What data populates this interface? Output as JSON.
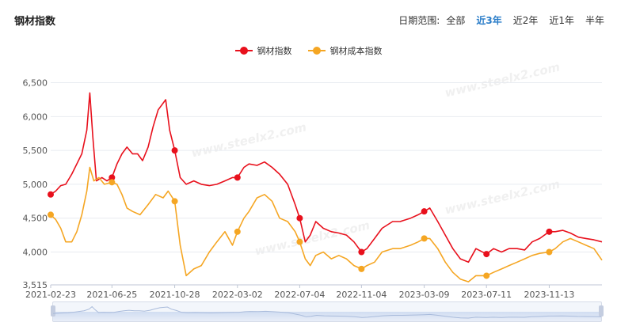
{
  "header": {
    "title": "钢材指数"
  },
  "date_range": {
    "label": "日期范围:",
    "options": [
      "全部",
      "近3年",
      "近2年",
      "近1年",
      "半年"
    ],
    "selected": "近3年"
  },
  "watermark": "www.steelx2.com",
  "colors": {
    "steel_index": "#e8101c",
    "cost_index": "#f5a623",
    "accent": "#2c7ec9"
  },
  "chart_data": {
    "type": "line",
    "title": "",
    "xlabel": "",
    "ylabel": "",
    "x_ticks": [
      "2021-02-23",
      "2021-06-25",
      "2021-10-28",
      "2022-03-02",
      "2022-07-04",
      "2022-11-04",
      "2023-03-09",
      "2023-07-11",
      "2023-11-13"
    ],
    "y_ticks": [
      "3,515",
      "4,000",
      "4,500",
      "5,000",
      "5,500",
      "6,000",
      "6,500"
    ],
    "ylim": [
      3515,
      6600
    ],
    "xlim": [
      "2021-02-23",
      "2024-02-26"
    ],
    "grid": "horizontal",
    "legend_position": "top-center",
    "series": [
      {
        "name": "钢材指数",
        "color": "#e8101c",
        "points": [
          [
            "2021-02-23",
            4850
          ],
          [
            "2021-03-05",
            4900
          ],
          [
            "2021-03-15",
            4980
          ],
          [
            "2021-03-25",
            5000
          ],
          [
            "2021-04-06",
            5150
          ],
          [
            "2021-04-16",
            5300
          ],
          [
            "2021-04-26",
            5450
          ],
          [
            "2021-05-06",
            5800
          ],
          [
            "2021-05-12",
            6350
          ],
          [
            "2021-05-18",
            5700
          ],
          [
            "2021-05-25",
            5050
          ],
          [
            "2021-06-05",
            5100
          ],
          [
            "2021-06-15",
            5050
          ],
          [
            "2021-06-25",
            5100
          ],
          [
            "2021-07-05",
            5300
          ],
          [
            "2021-07-15",
            5450
          ],
          [
            "2021-07-25",
            5550
          ],
          [
            "2021-08-05",
            5450
          ],
          [
            "2021-08-15",
            5450
          ],
          [
            "2021-08-25",
            5350
          ],
          [
            "2021-09-05",
            5550
          ],
          [
            "2021-09-15",
            5850
          ],
          [
            "2021-09-25",
            6100
          ],
          [
            "2021-10-10",
            6250
          ],
          [
            "2021-10-18",
            5800
          ],
          [
            "2021-10-28",
            5500
          ],
          [
            "2021-11-08",
            5100
          ],
          [
            "2021-11-20",
            5000
          ],
          [
            "2021-12-05",
            5050
          ],
          [
            "2021-12-20",
            5000
          ],
          [
            "2022-01-05",
            4980
          ],
          [
            "2022-01-20",
            5000
          ],
          [
            "2022-02-05",
            5050
          ],
          [
            "2022-02-20",
            5100
          ],
          [
            "2022-03-02",
            5100
          ],
          [
            "2022-03-15",
            5250
          ],
          [
            "2022-03-25",
            5300
          ],
          [
            "2022-04-10",
            5280
          ],
          [
            "2022-04-25",
            5330
          ],
          [
            "2022-05-10",
            5250
          ],
          [
            "2022-05-25",
            5150
          ],
          [
            "2022-06-10",
            5000
          ],
          [
            "2022-06-25",
            4700
          ],
          [
            "2022-07-04",
            4500
          ],
          [
            "2022-07-15",
            4150
          ],
          [
            "2022-07-25",
            4250
          ],
          [
            "2022-08-05",
            4450
          ],
          [
            "2022-08-20",
            4350
          ],
          [
            "2022-09-05",
            4300
          ],
          [
            "2022-09-20",
            4280
          ],
          [
            "2022-10-05",
            4250
          ],
          [
            "2022-10-20",
            4150
          ],
          [
            "2022-11-04",
            4000
          ],
          [
            "2022-11-15",
            4050
          ],
          [
            "2022-11-30",
            4200
          ],
          [
            "2022-12-15",
            4350
          ],
          [
            "2023-01-05",
            4450
          ],
          [
            "2023-01-20",
            4450
          ],
          [
            "2023-02-10",
            4500
          ],
          [
            "2023-02-25",
            4550
          ],
          [
            "2023-03-09",
            4600
          ],
          [
            "2023-03-20",
            4650
          ],
          [
            "2023-04-05",
            4450
          ],
          [
            "2023-04-20",
            4250
          ],
          [
            "2023-05-05",
            4050
          ],
          [
            "2023-05-20",
            3900
          ],
          [
            "2023-06-05",
            3850
          ],
          [
            "2023-06-20",
            4050
          ],
          [
            "2023-07-11",
            3970
          ],
          [
            "2023-07-25",
            4050
          ],
          [
            "2023-08-10",
            4000
          ],
          [
            "2023-08-25",
            4050
          ],
          [
            "2023-09-10",
            4050
          ],
          [
            "2023-09-25",
            4030
          ],
          [
            "2023-10-10",
            4150
          ],
          [
            "2023-10-25",
            4200
          ],
          [
            "2023-11-13",
            4300
          ],
          [
            "2023-11-25",
            4300
          ],
          [
            "2023-12-10",
            4320
          ],
          [
            "2023-12-25",
            4280
          ],
          [
            "2024-01-10",
            4220
          ],
          [
            "2024-01-25",
            4200
          ],
          [
            "2024-02-10",
            4180
          ],
          [
            "2024-02-26",
            4150
          ]
        ],
        "markers": [
          "2021-02-23",
          "2021-06-25",
          "2021-10-28",
          "2022-03-02",
          "2022-07-04",
          "2022-11-04",
          "2023-03-09",
          "2023-07-11",
          "2023-11-13"
        ]
      },
      {
        "name": "钢材成本指数",
        "color": "#f5a623",
        "points": [
          [
            "2021-02-23",
            4550
          ],
          [
            "2021-03-05",
            4480
          ],
          [
            "2021-03-15",
            4350
          ],
          [
            "2021-03-25",
            4150
          ],
          [
            "2021-04-06",
            4150
          ],
          [
            "2021-04-16",
            4300
          ],
          [
            "2021-04-26",
            4550
          ],
          [
            "2021-05-06",
            4900
          ],
          [
            "2021-05-12",
            5250
          ],
          [
            "2021-05-20",
            5050
          ],
          [
            "2021-05-30",
            5100
          ],
          [
            "2021-06-10",
            5000
          ],
          [
            "2021-06-25",
            5030
          ],
          [
            "2021-07-05",
            5000
          ],
          [
            "2021-07-15",
            4850
          ],
          [
            "2021-07-25",
            4650
          ],
          [
            "2021-08-05",
            4600
          ],
          [
            "2021-08-20",
            4550
          ],
          [
            "2021-09-05",
            4700
          ],
          [
            "2021-09-20",
            4850
          ],
          [
            "2021-10-05",
            4800
          ],
          [
            "2021-10-15",
            4900
          ],
          [
            "2021-10-28",
            4750
          ],
          [
            "2021-11-08",
            4100
          ],
          [
            "2021-11-20",
            3650
          ],
          [
            "2021-12-05",
            3750
          ],
          [
            "2021-12-20",
            3800
          ],
          [
            "2022-01-05",
            4000
          ],
          [
            "2022-01-20",
            4150
          ],
          [
            "2022-02-05",
            4300
          ],
          [
            "2022-02-20",
            4100
          ],
          [
            "2022-03-02",
            4300
          ],
          [
            "2022-03-15",
            4500
          ],
          [
            "2022-03-25",
            4600
          ],
          [
            "2022-04-10",
            4800
          ],
          [
            "2022-04-25",
            4850
          ],
          [
            "2022-05-10",
            4750
          ],
          [
            "2022-05-25",
            4500
          ],
          [
            "2022-06-10",
            4450
          ],
          [
            "2022-06-25",
            4300
          ],
          [
            "2022-07-04",
            4150
          ],
          [
            "2022-07-15",
            3900
          ],
          [
            "2022-07-25",
            3800
          ],
          [
            "2022-08-05",
            3950
          ],
          [
            "2022-08-20",
            4000
          ],
          [
            "2022-09-05",
            3900
          ],
          [
            "2022-09-20",
            3950
          ],
          [
            "2022-10-05",
            3900
          ],
          [
            "2022-10-20",
            3800
          ],
          [
            "2022-11-04",
            3750
          ],
          [
            "2022-11-15",
            3800
          ],
          [
            "2022-11-30",
            3850
          ],
          [
            "2022-12-15",
            4000
          ],
          [
            "2023-01-05",
            4050
          ],
          [
            "2023-01-20",
            4050
          ],
          [
            "2023-02-10",
            4100
          ],
          [
            "2023-02-25",
            4150
          ],
          [
            "2023-03-09",
            4200
          ],
          [
            "2023-03-20",
            4200
          ],
          [
            "2023-04-05",
            4050
          ],
          [
            "2023-04-20",
            3850
          ],
          [
            "2023-05-05",
            3700
          ],
          [
            "2023-05-20",
            3600
          ],
          [
            "2023-06-05",
            3560
          ],
          [
            "2023-06-20",
            3650
          ],
          [
            "2023-07-11",
            3650
          ],
          [
            "2023-07-25",
            3700
          ],
          [
            "2023-08-10",
            3750
          ],
          [
            "2023-08-25",
            3800
          ],
          [
            "2023-09-10",
            3850
          ],
          [
            "2023-09-25",
            3900
          ],
          [
            "2023-10-10",
            3950
          ],
          [
            "2023-10-25",
            3980
          ],
          [
            "2023-11-13",
            4000
          ],
          [
            "2023-11-25",
            4050
          ],
          [
            "2023-12-10",
            4150
          ],
          [
            "2023-12-25",
            4200
          ],
          [
            "2024-01-10",
            4150
          ],
          [
            "2024-01-25",
            4100
          ],
          [
            "2024-02-10",
            4050
          ],
          [
            "2024-02-26",
            3880
          ]
        ],
        "markers": [
          "2021-02-23",
          "2021-06-25",
          "2021-10-28",
          "2022-03-02",
          "2022-07-04",
          "2022-11-04",
          "2023-03-09",
          "2023-07-11",
          "2023-11-13"
        ]
      }
    ]
  }
}
